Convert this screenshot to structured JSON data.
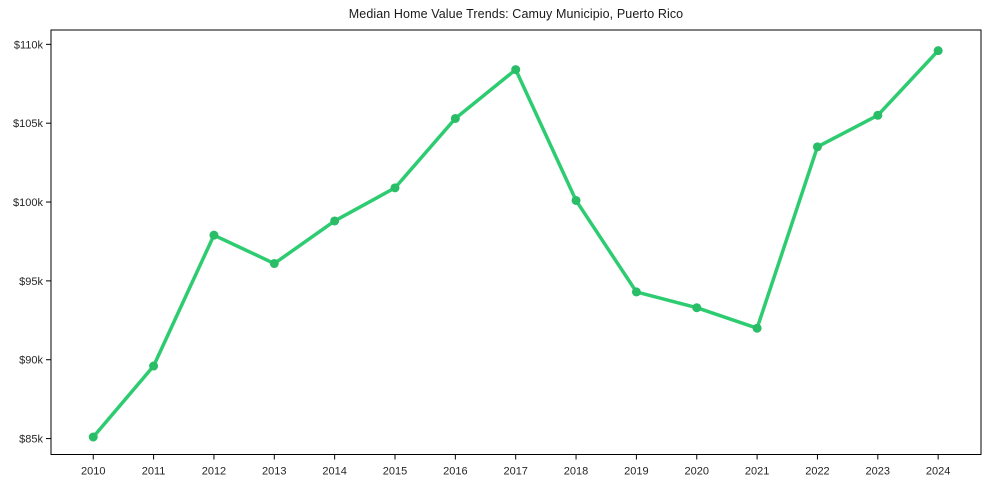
{
  "chart_data": {
    "type": "line",
    "title": "Median Home Value Trends: Camuy Municipio, Puerto Rico",
    "xlabel": "",
    "ylabel": "",
    "x": [
      2010,
      2011,
      2012,
      2013,
      2014,
      2015,
      2016,
      2017,
      2018,
      2019,
      2020,
      2021,
      2022,
      2023,
      2024
    ],
    "x_tick_labels": [
      "2010",
      "2011",
      "2012",
      "2013",
      "2014",
      "2015",
      "2016",
      "2017",
      "2018",
      "2019",
      "2020",
      "2021",
      "2022",
      "2023",
      "2024"
    ],
    "values": [
      85100,
      89600,
      97900,
      96100,
      98800,
      100900,
      105300,
      108400,
      100100,
      94300,
      93300,
      92000,
      103500,
      105500,
      109600
    ],
    "values_unit": "USD",
    "y_ticks": [
      {
        "value": 85000,
        "label": "$85k"
      },
      {
        "value": 90000,
        "label": "$90k"
      },
      {
        "value": 95000,
        "label": "$95k"
      },
      {
        "value": 100000,
        "label": "$100k"
      },
      {
        "value": 105000,
        "label": "$105k"
      },
      {
        "value": 110000,
        "label": "$110k"
      }
    ],
    "xlim": [
      2009.3,
      2024.71
    ],
    "ylim": [
      83990,
      110910
    ],
    "grid": false,
    "legend": "none",
    "line_color": "#2ecc71",
    "marker_color": "#2abd68",
    "axis_color": "#000000",
    "text_color": "#262626",
    "background": "#ffffff"
  }
}
